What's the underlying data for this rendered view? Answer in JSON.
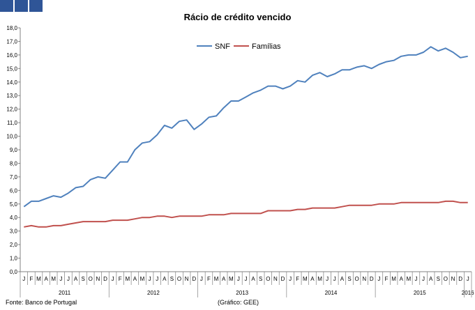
{
  "branding": {
    "accent_color": "#2f5597",
    "squares": 3
  },
  "title": "Rácio de crédito vencido",
  "footer": {
    "source": "Fonte: Banco de Portugal",
    "credit": "(Gráfico: GEE)"
  },
  "chart_data": {
    "type": "line",
    "title": "Rácio de crédito vencido",
    "xlabel": "",
    "ylabel": "",
    "ylim": [
      0,
      18
    ],
    "yticks": [
      "0,0",
      "1,0",
      "2,0",
      "3,0",
      "4,0",
      "5,0",
      "6,0",
      "7,0",
      "8,0",
      "9,0",
      "10,0",
      "11,0",
      "12,0",
      "13,0",
      "14,0",
      "15,0",
      "16,0",
      "17,0",
      "18,0"
    ],
    "month_labels": [
      "J",
      "F",
      "M",
      "A",
      "M",
      "J",
      "J",
      "A",
      "S",
      "O",
      "N",
      "D",
      "J",
      "F",
      "M",
      "A",
      "M",
      "J",
      "J",
      "A",
      "S",
      "O",
      "N",
      "D",
      "J",
      "F",
      "M",
      "A",
      "M",
      "J",
      "J",
      "A",
      "S",
      "O",
      "N",
      "D",
      "J",
      "F",
      "M",
      "A",
      "M",
      "J",
      "J",
      "A",
      "S",
      "O",
      "N",
      "D",
      "J",
      "F",
      "M",
      "A",
      "M",
      "J",
      "J",
      "A",
      "S",
      "O",
      "N",
      "D",
      "J"
    ],
    "years": [
      {
        "label": "2011",
        "start": 0,
        "months": 12
      },
      {
        "label": "2012",
        "start": 12,
        "months": 12
      },
      {
        "label": "2013",
        "start": 24,
        "months": 12
      },
      {
        "label": "2014",
        "start": 36,
        "months": 12
      },
      {
        "label": "2015",
        "start": 48,
        "months": 12
      },
      {
        "label": "2016",
        "start": 60,
        "months": 1
      }
    ],
    "legend_position": "top-center",
    "grid": false,
    "series": [
      {
        "name": "SNF",
        "color": "#4f81bd",
        "values": [
          4.8,
          5.2,
          5.2,
          5.4,
          5.6,
          5.5,
          5.8,
          6.2,
          6.3,
          6.8,
          7.0,
          6.9,
          7.5,
          8.1,
          8.1,
          9.0,
          9.5,
          9.6,
          10.1,
          10.8,
          10.6,
          11.1,
          11.2,
          10.5,
          10.9,
          11.4,
          11.5,
          12.1,
          12.6,
          12.6,
          12.9,
          13.2,
          13.4,
          13.7,
          13.7,
          13.5,
          13.7,
          14.1,
          14.0,
          14.5,
          14.7,
          14.4,
          14.6,
          14.9,
          14.9,
          15.1,
          15.2,
          15.0,
          15.3,
          15.5,
          15.6,
          15.9,
          16.0,
          16.0,
          16.2,
          16.6,
          16.3,
          16.5,
          16.2,
          15.8,
          15.9
        ]
      },
      {
        "name": "Famílias",
        "color": "#c0504d",
        "values": [
          3.3,
          3.4,
          3.3,
          3.3,
          3.4,
          3.4,
          3.5,
          3.6,
          3.7,
          3.7,
          3.7,
          3.7,
          3.8,
          3.8,
          3.8,
          3.9,
          4.0,
          4.0,
          4.1,
          4.1,
          4.0,
          4.1,
          4.1,
          4.1,
          4.1,
          4.2,
          4.2,
          4.2,
          4.3,
          4.3,
          4.3,
          4.3,
          4.3,
          4.5,
          4.5,
          4.5,
          4.5,
          4.6,
          4.6,
          4.7,
          4.7,
          4.7,
          4.7,
          4.8,
          4.9,
          4.9,
          4.9,
          4.9,
          5.0,
          5.0,
          5.0,
          5.1,
          5.1,
          5.1,
          5.1,
          5.1,
          5.1,
          5.2,
          5.2,
          5.1,
          5.1
        ]
      }
    ]
  }
}
